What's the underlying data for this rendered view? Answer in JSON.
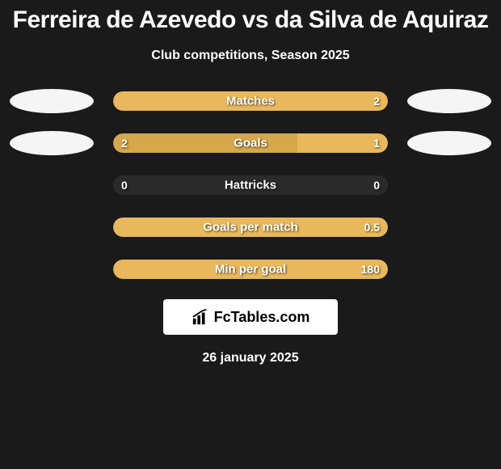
{
  "title": "Ferreira de Azevedo vs da Silva de Aquiraz",
  "subtitle": "Club competitions, Season 2025",
  "date": "26 january 2025",
  "logo_text": "FcTables.com",
  "colors": {
    "background": "#1a1a1a",
    "bar_empty": "#2a2a2a",
    "left_fill": "#d4a84b",
    "right_fill": "#e8b85a",
    "ellipse": "#f5f5f5",
    "text": "#ffffff"
  },
  "stats": [
    {
      "label": "Matches",
      "left_value": "",
      "right_value": "2",
      "left_pct": 0,
      "right_pct": 100,
      "show_left_ellipse": true,
      "show_right_ellipse": true,
      "fill_color": "#e8b85a"
    },
    {
      "label": "Goals",
      "left_value": "2",
      "right_value": "1",
      "left_pct": 67,
      "right_pct": 33,
      "show_left_ellipse": true,
      "show_right_ellipse": true,
      "fill_color_left": "#d4a84b",
      "fill_color_right": "#e8b85a"
    },
    {
      "label": "Hattricks",
      "left_value": "0",
      "right_value": "0",
      "left_pct": 0,
      "right_pct": 0,
      "show_left_ellipse": false,
      "show_right_ellipse": false,
      "fill_color": "#2a2a2a"
    },
    {
      "label": "Goals per match",
      "left_value": "",
      "right_value": "0.5",
      "left_pct": 0,
      "right_pct": 100,
      "show_left_ellipse": false,
      "show_right_ellipse": false,
      "fill_color": "#e8b85a"
    },
    {
      "label": "Min per goal",
      "left_value": "",
      "right_value": "180",
      "left_pct": 0,
      "right_pct": 100,
      "show_left_ellipse": false,
      "show_right_ellipse": false,
      "fill_color": "#e8b85a"
    }
  ]
}
